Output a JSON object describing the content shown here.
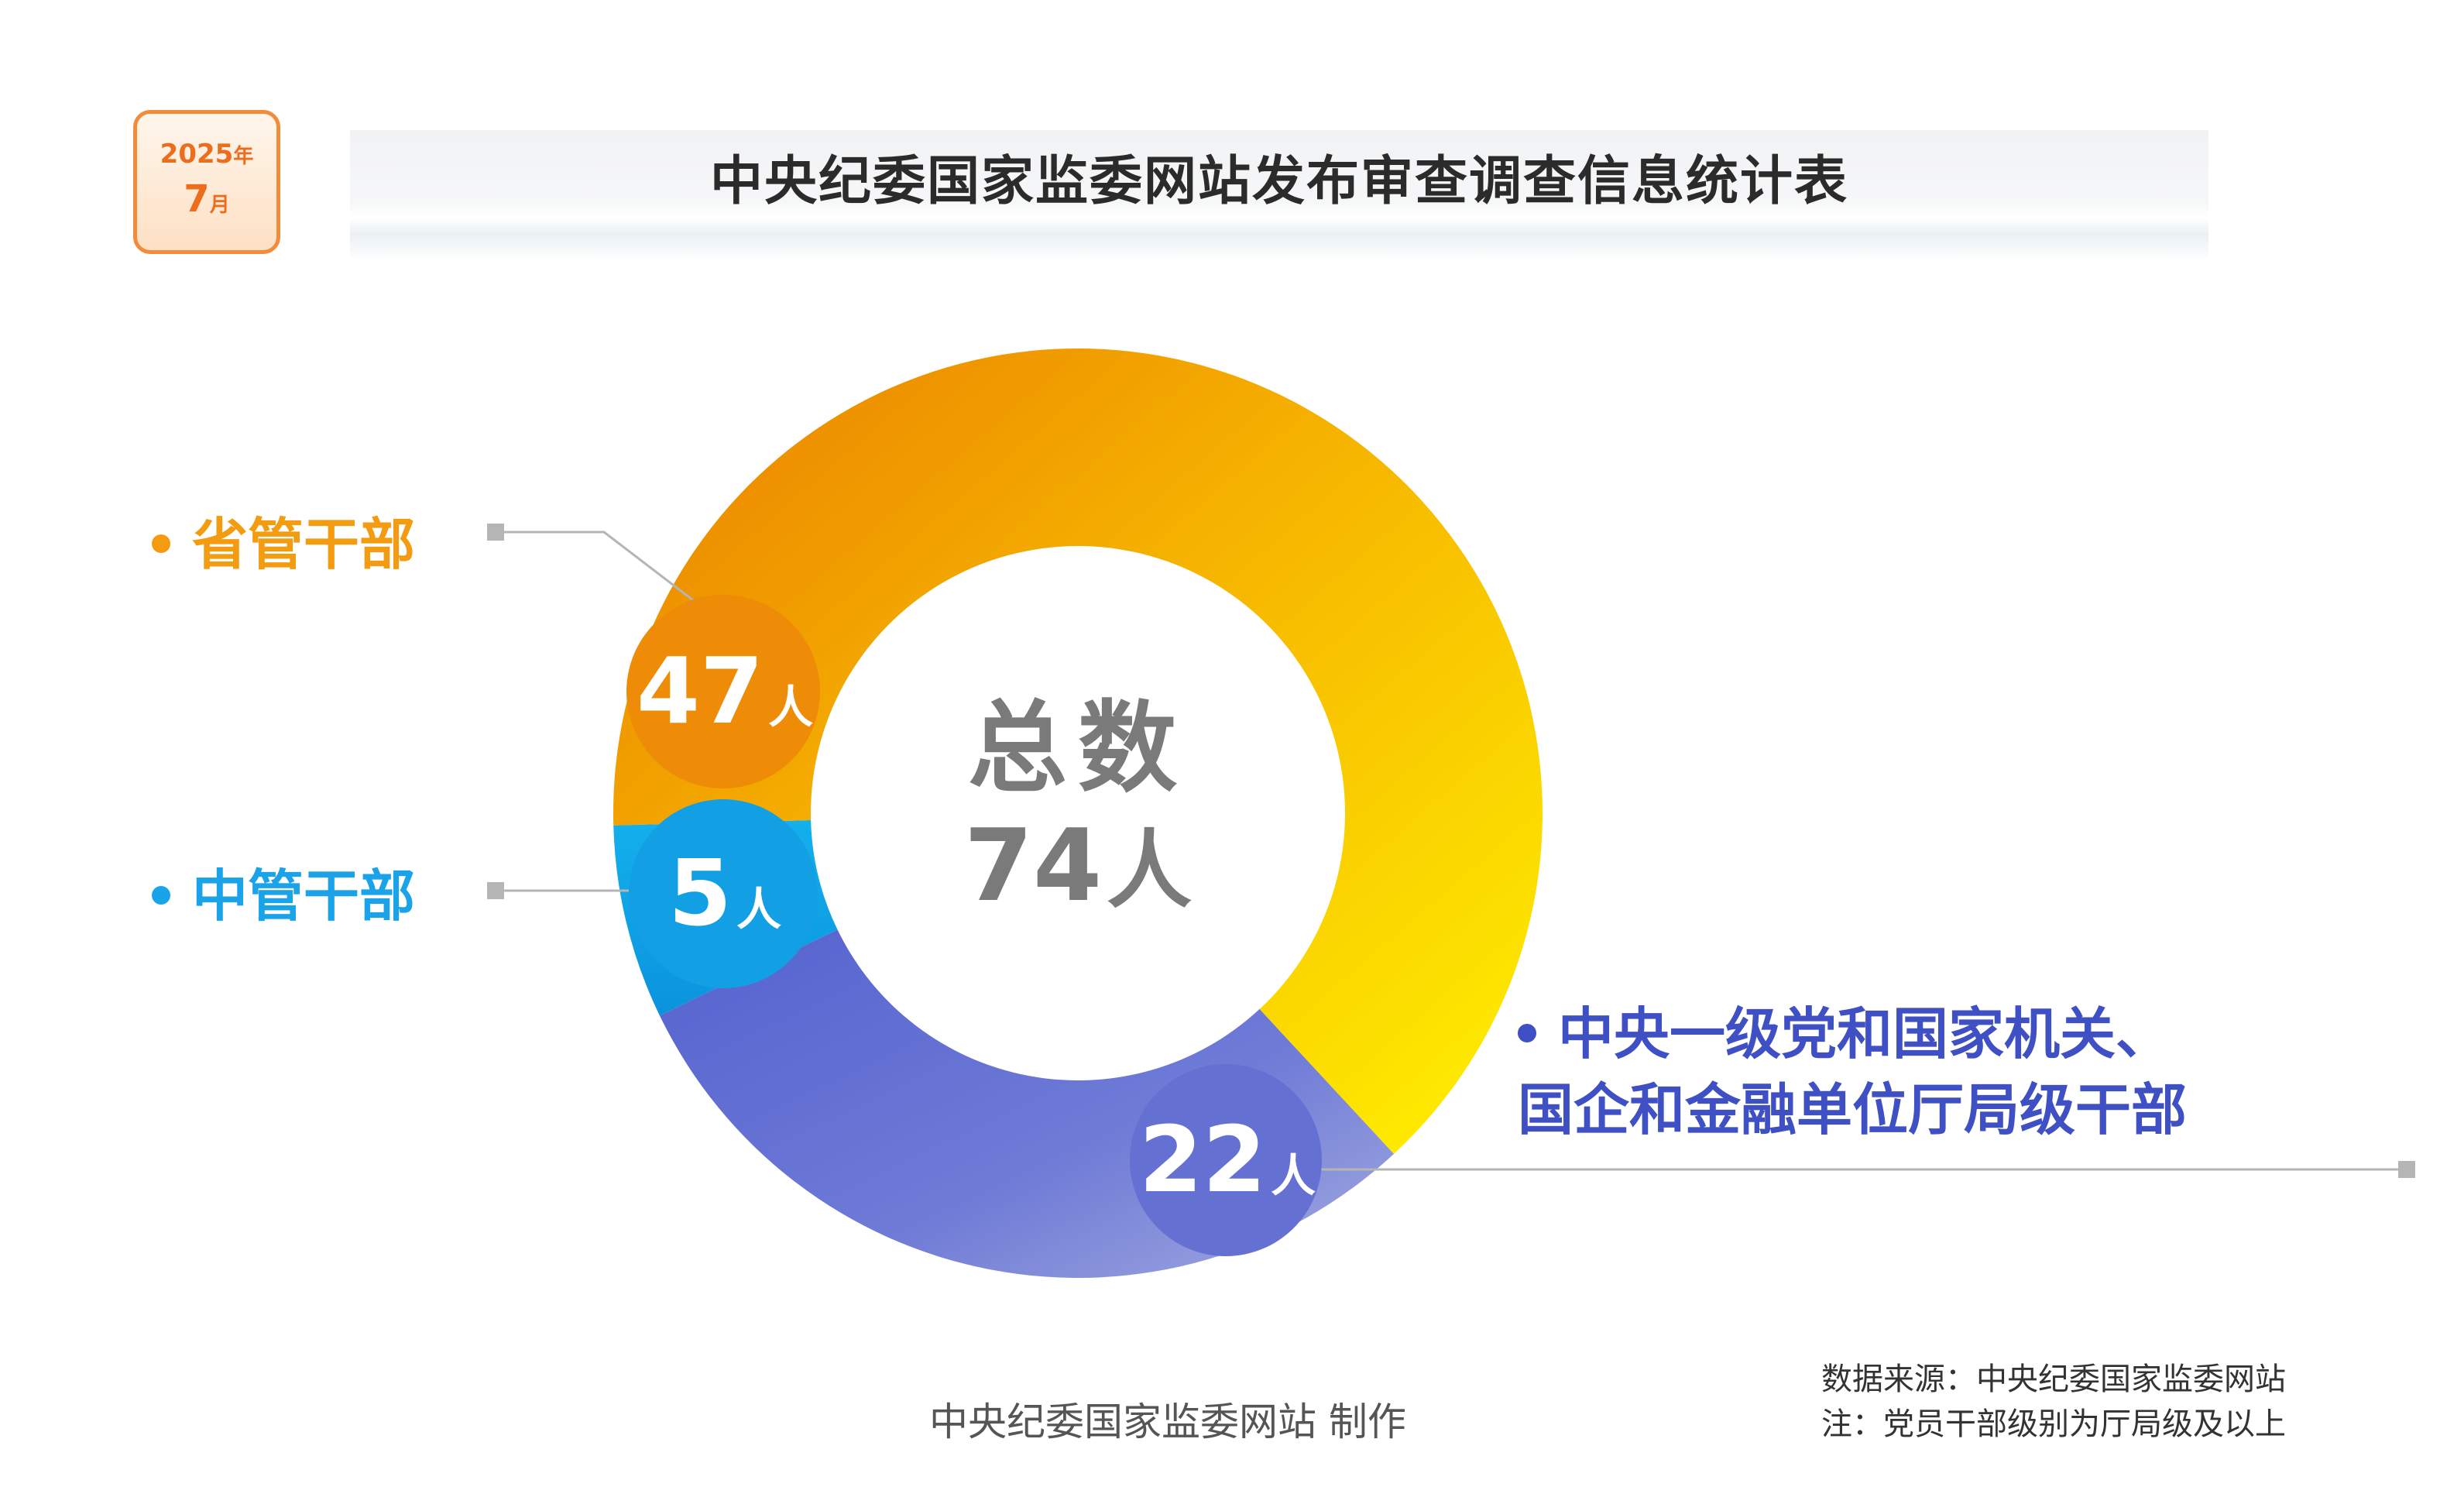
{
  "date_badge": {
    "year": "2025",
    "year_unit": "年",
    "month": "7",
    "month_unit": "月"
  },
  "title": "中央纪委国家监委网站发布审查调查信息统计表",
  "chart_data": {
    "type": "pie",
    "donut": true,
    "total_label": "总数",
    "total": 74,
    "unit": "人",
    "series": [
      {
        "name": "省管干部",
        "value": 47,
        "color": "#f39c12",
        "gradient": [
          "#ec8a00",
          "#fff200"
        ]
      },
      {
        "name": "中管干部",
        "value": 5,
        "color": "#1aa3e8",
        "gradient": [
          "#1aa3e8",
          "#0b93de"
        ]
      },
      {
        "name": "中央一级党和国家机关、国企和金融单位厅局级干部",
        "name_lines": [
          "中央一级党和国家机关、",
          "国企和金融单位厅局级干部"
        ],
        "value": 22,
        "color": "#3f4fc4",
        "gradient": [
          "#5e6bd2",
          "#9aa2de"
        ]
      }
    ]
  },
  "footer": {
    "maker": "中央纪委国家监委网站 制作",
    "source": "数据来源：中央纪委国家监委网站",
    "note": "注：党员干部级别为厅局级及以上"
  }
}
